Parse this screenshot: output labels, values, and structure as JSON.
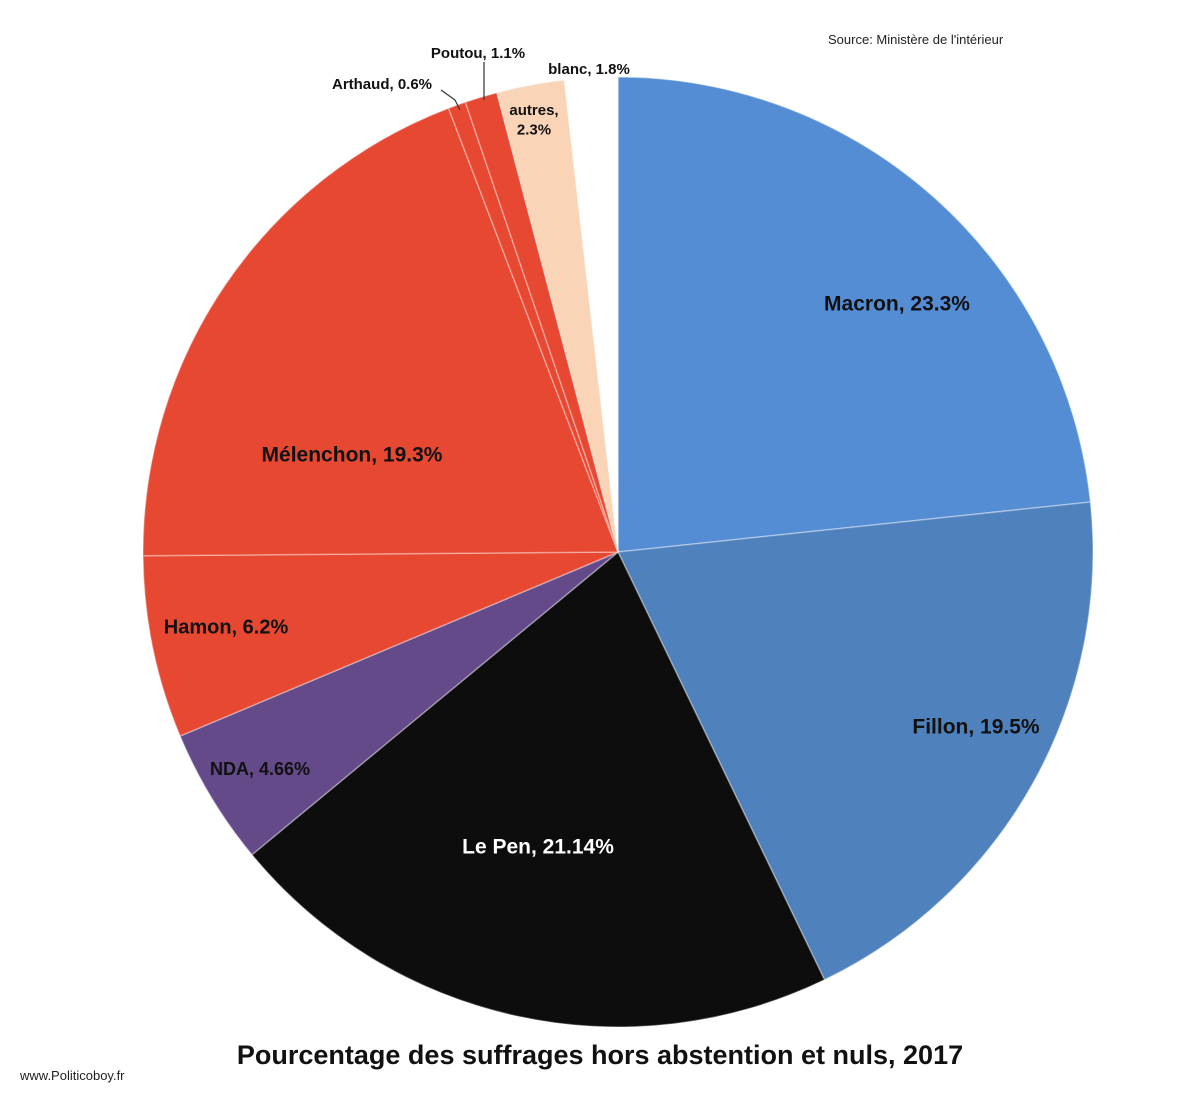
{
  "source_text": "Source:  Ministère de l'intérieur",
  "caption": "Pourcentage des suffrages  hors abstention et nuls, 2017",
  "website": "www.Politicoboy.fr",
  "chart_data": {
    "type": "pie",
    "title": "Pourcentage des suffrages  hors abstention et nuls, 2017",
    "start": "12 o'clock, clockwise",
    "slices": [
      {
        "name": "Macron",
        "value": 23.3,
        "label": "Macron, 23.3%",
        "color": "#548dd4"
      },
      {
        "name": "Fillon",
        "value": 19.5,
        "label": "Fillon, 19.5%",
        "color": "#4f81bd"
      },
      {
        "name": "Le Pen",
        "value": 21.14,
        "label": "Le Pen, 21.14%",
        "color": "#0d0d0d"
      },
      {
        "name": "NDA",
        "value": 4.66,
        "label": "NDA, 4.66%",
        "color": "#654a8a"
      },
      {
        "name": "Hamon",
        "value": 6.2,
        "label": "Hamon, 6.2%",
        "color": "#e74832"
      },
      {
        "name": "Mélenchon",
        "value": 19.3,
        "label": "Mélenchon, 19.3%",
        "color": "#e74832"
      },
      {
        "name": "Arthaud",
        "value": 0.6,
        "label": "Arthaud, 0.6%",
        "color": "#e74832"
      },
      {
        "name": "Poutou",
        "value": 1.1,
        "label": "Poutou, 1.1%",
        "color": "#e74832"
      },
      {
        "name": "autres",
        "value": 2.3,
        "label": "autres, 2.3%",
        "color": "#fad4b6"
      },
      {
        "name": "blanc",
        "value": 1.8,
        "label": "blanc, 1.8%",
        "color": "#ffffff"
      }
    ]
  }
}
